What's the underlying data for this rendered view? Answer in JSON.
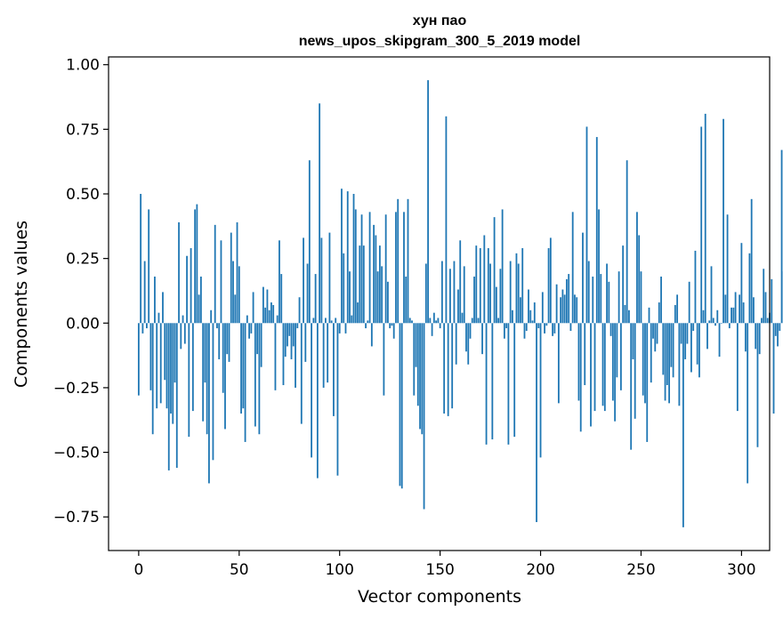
{
  "chart_data": {
    "type": "bar",
    "title_line1": "хун пао",
    "title_line2": "news_upos_skipgram_300_5_2019 model",
    "xlabel": "Vector components",
    "ylabel": "Components values",
    "xlim": [
      -15,
      314
    ],
    "ylim": [
      -0.88,
      1.03
    ],
    "xticks": [
      0,
      50,
      100,
      150,
      200,
      250,
      300
    ],
    "xtick_labels": [
      "0",
      "50",
      "100",
      "150",
      "200",
      "250",
      "300"
    ],
    "yticks": [
      -0.75,
      -0.5,
      -0.25,
      0.0,
      0.25,
      0.5,
      0.75,
      1.0
    ],
    "ytick_labels": [
      "−0.75",
      "−0.50",
      "−0.25",
      "0.00",
      "0.25",
      "0.50",
      "0.75",
      "1.00"
    ],
    "values": [
      -0.28,
      0.5,
      -0.04,
      0.24,
      -0.02,
      0.44,
      -0.26,
      -0.43,
      0.18,
      -0.33,
      0.04,
      -0.31,
      0.12,
      -0.22,
      -0.33,
      -0.57,
      -0.35,
      -0.39,
      -0.23,
      -0.56,
      0.39,
      -0.1,
      0.03,
      -0.08,
      0.26,
      -0.44,
      0.29,
      -0.34,
      0.44,
      0.46,
      0.11,
      0.18,
      -0.38,
      -0.23,
      -0.43,
      -0.62,
      0.05,
      -0.53,
      0.38,
      -0.02,
      -0.14,
      0.32,
      -0.27,
      -0.41,
      -0.12,
      -0.15,
      0.35,
      0.24,
      0.11,
      0.39,
      0.22,
      -0.35,
      -0.33,
      -0.46,
      0.03,
      -0.06,
      -0.04,
      0.12,
      -0.4,
      -0.12,
      -0.43,
      -0.17,
      0.14,
      0.06,
      0.13,
      0.05,
      0.08,
      0.07,
      -0.26,
      0.03,
      0.32,
      0.19,
      -0.24,
      -0.13,
      -0.09,
      -0.05,
      -0.14,
      -0.09,
      -0.25,
      -0.02,
      0.1,
      -0.39,
      0.33,
      -0.15,
      0.23,
      0.63,
      -0.52,
      0.02,
      0.19,
      -0.6,
      0.85,
      0.33,
      -0.25,
      0.02,
      -0.23,
      0.35,
      0.01,
      -0.36,
      0.02,
      -0.59,
      -0.04,
      0.52,
      0.27,
      -0.04,
      0.51,
      0.2,
      0.03,
      0.5,
      0.44,
      0.08,
      0.3,
      0.42,
      0.3,
      -0.02,
      0.01,
      0.43,
      -0.09,
      0.38,
      0.34,
      0.2,
      0.3,
      0.22,
      -0.28,
      0.42,
      0.16,
      -0.02,
      -0.01,
      -0.06,
      0.43,
      0.48,
      -0.63,
      -0.64,
      0.43,
      0.18,
      0.48,
      0.02,
      0.01,
      -0.28,
      -0.17,
      -0.32,
      -0.41,
      -0.43,
      -0.72,
      0.23,
      0.94,
      0.02,
      -0.05,
      0.04,
      0.01,
      0.02,
      -0.02,
      0.24,
      -0.35,
      0.8,
      -0.36,
      0.21,
      -0.33,
      0.24,
      -0.16,
      0.13,
      0.32,
      0.04,
      0.22,
      -0.11,
      -0.16,
      -0.06,
      0.02,
      0.18,
      0.3,
      0.02,
      0.29,
      -0.12,
      0.34,
      -0.47,
      0.29,
      0.23,
      -0.45,
      0.41,
      0.14,
      0.02,
      0.21,
      0.44,
      -0.06,
      -0.02,
      -0.47,
      0.24,
      0.05,
      -0.44,
      0.27,
      0.23,
      0.1,
      0.29,
      -0.06,
      -0.03,
      0.13,
      0.05,
      0.01,
      0.08,
      -0.77,
      -0.02,
      -0.52,
      0.12,
      -0.04,
      -0.01,
      0.29,
      0.33,
      -0.05,
      -0.04,
      0.15,
      -0.31,
      0.1,
      0.13,
      0.11,
      0.17,
      0.19,
      -0.03,
      0.43,
      0.11,
      0.1,
      -0.3,
      -0.42,
      0.35,
      -0.24,
      0.76,
      0.24,
      -0.4,
      0.18,
      -0.34,
      0.72,
      0.44,
      0.19,
      -0.32,
      -0.34,
      0.23,
      0.16,
      -0.05,
      -0.3,
      -0.38,
      -0.21,
      0.2,
      -0.26,
      0.3,
      0.07,
      0.63,
      0.05,
      -0.49,
      -0.14,
      -0.37,
      0.43,
      0.34,
      0.2,
      -0.28,
      -0.31,
      -0.46,
      0.06,
      -0.23,
      -0.06,
      -0.11,
      -0.08,
      0.08,
      0.18,
      -0.2,
      -0.3,
      -0.24,
      -0.31,
      -0.17,
      -0.21,
      0.07,
      0.11,
      -0.32,
      -0.08,
      -0.79,
      -0.14,
      -0.08,
      0.16,
      -0.19,
      -0.03,
      0.28,
      -0.16,
      -0.21,
      0.76,
      0.05,
      0.81,
      -0.1,
      0.01,
      0.22,
      0.02,
      -0.01,
      0.05,
      -0.13,
      0.0,
      0.79,
      0.11,
      0.42,
      -0.02,
      0.06,
      0.06,
      0.12,
      -0.34,
      0.11,
      0.31,
      0.08,
      -0.11,
      -0.62,
      0.27,
      0.48,
      0.1,
      -0.1,
      -0.48,
      -0.12,
      0.02,
      0.21,
      0.12,
      0.02,
      0.04,
      0.17,
      -0.35,
      -0.05,
      -0.09,
      -0.03,
      0.67,
      0.2,
      -0.12
    ]
  }
}
